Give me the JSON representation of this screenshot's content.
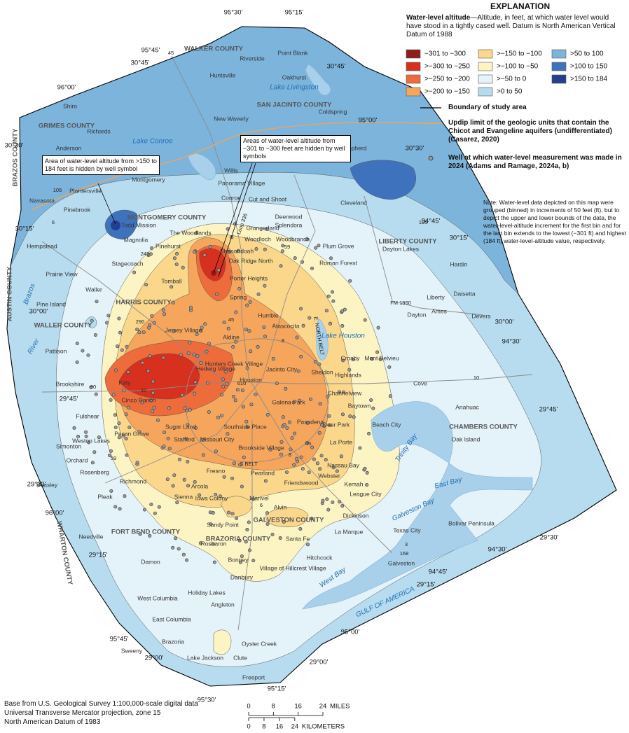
{
  "explanation": {
    "title": "EXPLANATION",
    "heading": "Water-level altitude",
    "description": "—Altitude, in feet, at which water level would have stood in a tightly cased well. Datum is North American Vertical Datum of 1988",
    "bins": [
      {
        "label": "−301 to −300",
        "color": "#8e1c1c"
      },
      {
        "label": ">−300 to −250",
        "color": "#d7301f"
      },
      {
        "label": ">−250 to −200",
        "color": "#ee6b3b"
      },
      {
        "label": ">−200 to −150",
        "color": "#f6a55c"
      },
      {
        "label": ">−150 to −100",
        "color": "#fbd78c"
      },
      {
        "label": ">−100 to −50",
        "color": "#fdf4c3"
      },
      {
        "label": ">−50 to 0",
        "color": "#e4f2fa"
      },
      {
        "label": ">0 to 50",
        "color": "#b7dcef"
      },
      {
        "label": ">50 to 100",
        "color": "#7db4dc"
      },
      {
        "label": ">100 to 150",
        "color": "#3f72bd"
      },
      {
        "label": ">150 to 184",
        "color": "#243f8e"
      }
    ],
    "boundary": "Boundary of study area",
    "updip": "Updip limit of the geologic units that contain the Chicot and Evangeline aquifers (undifferentiated) (Casarez, 2020)",
    "well": "Well at which water-level measurement was made in 2024 (Adams and Ramage, 2024a, b)",
    "note": "Note: Water-level data depicted on this map were grouped (binned) in increments of 50 feet (ft), but to depict the upper and lower bounds of the data, the water-level-altitude increment for the first bin and for the last bin extends to the lowest (−301 ft) and highest (184 ft) water-level-altitude value, respectively."
  },
  "callouts": [
    "Area of water-level altitude from >150 to 184 feet is hidden by well symbol",
    "Areas of water-level altitude from −301 to −300 feet are hidden by well symbols"
  ],
  "map": {
    "counties": [
      "WALKER COUNTY",
      "GRIMES COUNTY",
      "SAN JACINTO COUNTY",
      "MONTGOMERY COUNTY",
      "LIBERTY COUNTY",
      "HARRIS COUNTY",
      "WALLER COUNTY",
      "CHAMBERS COUNTY",
      "FORT BEND COUNTY",
      "BRAZORIA COUNTY",
      "GALVESTON COUNTY",
      "AUSTIN COUNTY",
      "BRAZOS COUNTY",
      "WHARTON COUNTY"
    ],
    "places": [
      "Riverside",
      "Point Blank",
      "Huntsville",
      "Oakhurst",
      "Shiro",
      "New Waverly",
      "Coldspring",
      "Richards",
      "Anderson",
      "Shepherd",
      "Willis",
      "Montgomery",
      "Panorama Village",
      "Conroe",
      "Cut and Shoot",
      "Plantersville",
      "Navasota",
      "Pinebrook",
      "Todd Mission",
      "Cleveland",
      "Deerwood",
      "Splendora",
      "Grangerland",
      "Magnolia",
      "The Woodlands",
      "Woodloch",
      "Woodbranch",
      "Hempstead",
      "Pinehurst",
      "Shenandoah",
      "Plum Grove",
      "Oak Ridge North",
      "Roman Forest",
      "Dayton Lakes",
      "Hardin",
      "Stagecoach",
      "Tomball",
      "Porter Heights",
      "Prairie View",
      "Waller",
      "Daisetta",
      "Spring",
      "Liberty",
      "Pine Island",
      "Ames",
      "Dayton",
      "Devers",
      "Humble",
      "Atascocita",
      "Aldine",
      "Jersey Village",
      "Crosby",
      "Mont Belvieu",
      "Hunters Creek Village",
      "Hedwig Village",
      "Jacinto City",
      "Sheldon",
      "Pattison",
      "Brookshire",
      "Katy",
      "Houston",
      "Highlands",
      "Cove",
      "Channelview",
      "Cinco Ranch",
      "Galena Park",
      "Baytown",
      "Anahuac",
      "Fulshear",
      "Pasadena",
      "Deer Park",
      "Beach City",
      "Southside Place",
      "Pecan Grove",
      "Weston Lakes",
      "Sugar Land",
      "Stafford",
      "Missouri City",
      "Brookside Village",
      "La Porte",
      "Simonton",
      "Orchard",
      "Nassau Bay",
      "Oak Island",
      "Rosenberg",
      "Richmond",
      "Fresno",
      "Pearland",
      "Friendswood",
      "Webster",
      "Kemah",
      "League City",
      "Beasley",
      "Arcola",
      "Pleak",
      "Sienna",
      "Iowa Colony",
      "Manvel",
      "Alvin",
      "Dickinson",
      "Needville",
      "Sandy Point",
      "La Marque",
      "Texas City",
      "Bolivar Peninsula",
      "Rosharon",
      "Santa Fe",
      "Bonney",
      "Hitchcock",
      "Damon",
      "Galveston",
      "Village of Hillcrest Village",
      "Danbury",
      "Holiday Lakes",
      "Angleton",
      "West Columbia",
      "East Columbia",
      "Brazoria",
      "Oyster Creek",
      "Sweeny",
      "Lake Jackson",
      "Clute",
      "Freeport"
    ],
    "water": [
      "Lake Livingston",
      "Lake Conroe",
      "Lake Houston",
      "Trinity Bay",
      "East Bay",
      "Galveston Bay",
      "West Bay",
      "GULF OF AMERICA",
      "Brazos",
      "River"
    ],
    "coordinates": [
      "95°30'",
      "95°15'",
      "95°45'",
      "30°45'",
      "30°45'",
      "96°00'",
      "95°00'",
      "30°30'",
      "30°30'",
      "30°15'",
      "94°45'",
      "30°15'",
      "30°00'",
      "30°00'",
      "94°30'",
      "29°45'",
      "29°45'",
      "29°30'",
      "29°30'",
      "96°00'",
      "94°30'",
      "29°15'",
      "94°45'",
      "29°15'",
      "95°45'",
      "95°00'",
      "29°00'",
      "29°00'",
      "95°30'",
      "95°15'"
    ],
    "roads": [
      "45",
      "105",
      "6",
      "249",
      "105",
      "59",
      "290",
      "45",
      "FM 1960",
      "8",
      "E. NORTH BELT",
      "10",
      "90",
      "10",
      "610",
      "45",
      "8",
      "S BELT",
      "6",
      "59",
      "3",
      "168",
      "Loop 336"
    ]
  },
  "scale": {
    "miles": {
      "ticks": [
        0,
        8,
        16,
        24
      ],
      "unit": "MILES"
    },
    "kilometers": {
      "ticks": [
        0,
        8,
        16,
        24
      ],
      "unit": "KILOMETERS"
    }
  },
  "base": [
    "Base from U.S. Geological Survey 1:100,000-scale digital data",
    "Universal Transverse Mercator projection, zone 15",
    "North American Datum of 1983"
  ]
}
